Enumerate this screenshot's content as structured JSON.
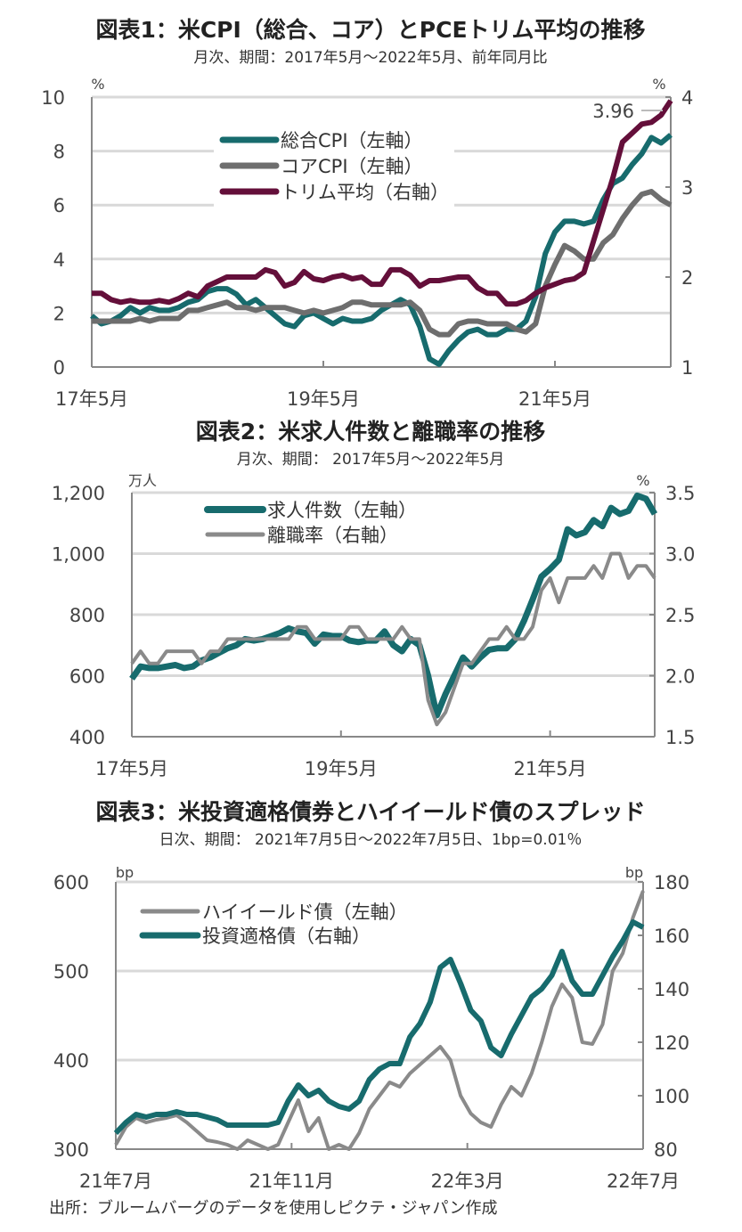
{
  "source": "出所：ブルームバーグのデータを使用しピクテ・ジャパン作成",
  "colors": {
    "teal": "#176b6d",
    "grey": "#6e6e6e",
    "maroon": "#640f3a",
    "lightgrey": "#8a8a8a",
    "grid": "#d9d9d9"
  },
  "chart_data": [
    {
      "type": "line",
      "title": "図表1：米CPI（総合、コア）とPCEトリム平均の推移",
      "subtitle": "月次、期間：2017年5月～2022年5月、前年同月比",
      "left_unit": "%",
      "right_unit": "%",
      "ylim": [
        0,
        10
      ],
      "y_ticks": [
        "0",
        "2",
        "4",
        "6",
        "8",
        "10"
      ],
      "y2lim": [
        1,
        4
      ],
      "y2_ticks": [
        "1",
        "2",
        "3",
        "4"
      ],
      "x_start": "2017-05",
      "x_end": "2022-05",
      "frequency": "monthly",
      "x_tick_labels": [
        "17年5月",
        "19年5月",
        "21年5月"
      ],
      "grid": true,
      "legend": "top-center",
      "annotation": "3.96",
      "series": [
        {
          "name": "総合CPI（左軸）",
          "axis": "left",
          "color": "#176b6d",
          "values": [
            1.9,
            1.6,
            1.7,
            1.9,
            2.2,
            2.0,
            2.2,
            2.1,
            2.1,
            2.2,
            2.4,
            2.5,
            2.8,
            2.9,
            2.9,
            2.7,
            2.3,
            2.5,
            2.2,
            1.9,
            1.6,
            1.5,
            1.9,
            2.0,
            1.8,
            1.6,
            1.8,
            1.7,
            1.7,
            1.8,
            2.1,
            2.3,
            2.5,
            2.3,
            1.5,
            0.3,
            0.1,
            0.6,
            1.0,
            1.3,
            1.4,
            1.2,
            1.2,
            1.4,
            1.4,
            1.7,
            2.6,
            4.2,
            5.0,
            5.4,
            5.4,
            5.3,
            5.4,
            6.2,
            6.8,
            7.0,
            7.5,
            7.9,
            8.5,
            8.3,
            8.6
          ]
        },
        {
          "name": "コアCPI（左軸）",
          "axis": "left",
          "color": "#6e6e6e",
          "values": [
            1.7,
            1.7,
            1.7,
            1.7,
            1.7,
            1.8,
            1.7,
            1.8,
            1.8,
            1.8,
            2.1,
            2.1,
            2.2,
            2.3,
            2.4,
            2.2,
            2.2,
            2.1,
            2.2,
            2.2,
            2.2,
            2.1,
            2.0,
            2.1,
            2.0,
            2.1,
            2.2,
            2.4,
            2.4,
            2.3,
            2.3,
            2.3,
            2.3,
            2.4,
            2.1,
            1.4,
            1.2,
            1.2,
            1.6,
            1.7,
            1.7,
            1.6,
            1.6,
            1.6,
            1.4,
            1.3,
            1.6,
            3.0,
            3.8,
            4.5,
            4.3,
            4.0,
            4.0,
            4.6,
            4.9,
            5.5,
            6.0,
            6.4,
            6.5,
            6.2,
            6.0
          ]
        },
        {
          "name": "トリム平均（右軸）",
          "axis": "right",
          "color": "#640f3a",
          "values": [
            1.82,
            1.82,
            1.75,
            1.72,
            1.74,
            1.72,
            1.72,
            1.74,
            1.72,
            1.76,
            1.82,
            1.78,
            1.9,
            1.95,
            2.0,
            2.0,
            2.0,
            2.0,
            2.08,
            2.05,
            1.9,
            1.94,
            2.06,
            1.98,
            1.96,
            2.0,
            2.02,
            1.98,
            2.0,
            1.92,
            1.92,
            2.08,
            2.08,
            2.02,
            1.9,
            1.96,
            1.96,
            1.98,
            2.0,
            2.0,
            1.88,
            1.82,
            1.82,
            1.7,
            1.7,
            1.74,
            1.82,
            1.88,
            1.92,
            1.96,
            1.98,
            2.05,
            2.4,
            2.75,
            3.1,
            3.5,
            3.6,
            3.7,
            3.72,
            3.8,
            3.96
          ]
        }
      ]
    },
    {
      "type": "line",
      "title": "図表2：米求人件数と離職率の推移",
      "subtitle": "月次、期間： 2017年5月～2022年5月",
      "left_unit": "万人",
      "right_unit": "%",
      "ylim": [
        400,
        1200
      ],
      "y_ticks": [
        "400",
        "600",
        "800",
        "1,000",
        "1,200"
      ],
      "y2lim": [
        1.5,
        3.5
      ],
      "y2_ticks": [
        "1.5",
        "2.0",
        "2.5",
        "3.0",
        "3.5"
      ],
      "x_start": "2017-05",
      "x_end": "2022-05",
      "frequency": "monthly",
      "x_tick_labels": [
        "17年5月",
        "19年5月",
        "21年5月"
      ],
      "grid": true,
      "legend": "top-left",
      "series": [
        {
          "name": "求人件数（左軸）",
          "axis": "left",
          "color": "#176b6d",
          "values": [
            590,
            630,
            625,
            625,
            630,
            635,
            625,
            630,
            650,
            660,
            675,
            690,
            700,
            720,
            715,
            720,
            730,
            740,
            755,
            745,
            740,
            705,
            735,
            730,
            730,
            715,
            710,
            715,
            715,
            745,
            700,
            680,
            720,
            700,
            600,
            470,
            540,
            600,
            660,
            630,
            660,
            685,
            690,
            690,
            720,
            780,
            850,
            925,
            950,
            980,
            1080,
            1060,
            1070,
            1110,
            1090,
            1150,
            1130,
            1140,
            1190,
            1180,
            1130
          ]
        },
        {
          "name": "離職率（右軸）",
          "axis": "right",
          "color": "#8a8a8a",
          "values": [
            2.1,
            2.2,
            2.1,
            2.1,
            2.2,
            2.2,
            2.2,
            2.2,
            2.1,
            2.2,
            2.2,
            2.3,
            2.3,
            2.3,
            2.3,
            2.3,
            2.3,
            2.3,
            2.3,
            2.4,
            2.4,
            2.3,
            2.3,
            2.3,
            2.3,
            2.4,
            2.4,
            2.3,
            2.3,
            2.3,
            2.3,
            2.4,
            2.3,
            2.3,
            1.8,
            1.6,
            1.7,
            1.9,
            2.1,
            2.1,
            2.2,
            2.3,
            2.3,
            2.4,
            2.3,
            2.3,
            2.4,
            2.7,
            2.8,
            2.6,
            2.8,
            2.8,
            2.8,
            2.9,
            2.8,
            3.0,
            3.0,
            2.8,
            2.9,
            2.9,
            2.8
          ]
        }
      ]
    },
    {
      "type": "line",
      "title": "図表3：米投資適格債券とハイイールド債のスプレッド",
      "subtitle": "日次、期間： 2021年7月5日～2022年7月5日、1bp=0.01％",
      "left_unit": "bp",
      "right_unit": "bp",
      "ylim": [
        300,
        600
      ],
      "y_ticks": [
        "300",
        "400",
        "500",
        "600"
      ],
      "y2lim": [
        80,
        180
      ],
      "y2_ticks": [
        "80",
        "100",
        "120",
        "140",
        "160",
        "180"
      ],
      "x_start": "2021-07-05",
      "x_end": "2022-07-05",
      "frequency": "daily (sampled weekly)",
      "x_tick_labels": [
        "21年7月",
        "21年11月",
        "22年3月",
        "22年7月"
      ],
      "grid": true,
      "legend": "top-left",
      "series": [
        {
          "name": "ハイイールド債（左軸）",
          "axis": "left",
          "color": "#8a8a8a",
          "values": [
            305,
            325,
            335,
            330,
            333,
            335,
            338,
            330,
            320,
            310,
            308,
            305,
            300,
            310,
            305,
            300,
            305,
            330,
            355,
            320,
            335,
            300,
            305,
            300,
            318,
            345,
            360,
            375,
            370,
            385,
            395,
            405,
            415,
            400,
            360,
            340,
            330,
            325,
            350,
            370,
            360,
            385,
            420,
            460,
            485,
            470,
            420,
            418,
            440,
            500,
            520,
            560,
            590
          ]
        },
        {
          "name": "投資適格債（右軸）",
          "axis": "right",
          "color": "#176b6d",
          "values": [
            86,
            90,
            93,
            92,
            93,
            93,
            94,
            93,
            93,
            92,
            91,
            89,
            89,
            89,
            89,
            89,
            90,
            98,
            104,
            100,
            102,
            98,
            96,
            95,
            98,
            106,
            110,
            112,
            112,
            122,
            127,
            135,
            148,
            151,
            142,
            132,
            128,
            118,
            115,
            123,
            130,
            137,
            140,
            145,
            154,
            143,
            138,
            138,
            145,
            152,
            158,
            165,
            163
          ]
        }
      ]
    }
  ]
}
